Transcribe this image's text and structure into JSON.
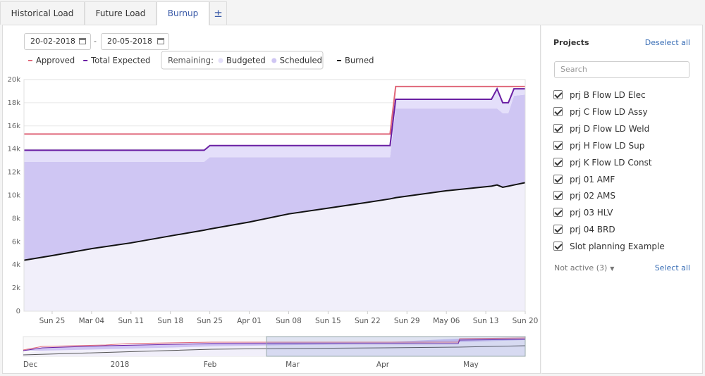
{
  "tabs": [
    "Historical Load",
    "Future Load",
    "Burnup",
    "±"
  ],
  "active_tab": 2,
  "date_from": "20-02-2018",
  "date_separator": "-",
  "date_to": "20-05-2018",
  "chart_data": {
    "type": "area",
    "legend_group_label": "Remaining:",
    "x": [
      "2018-02-20",
      "2018-02-25",
      "2018-03-04",
      "2018-03-11",
      "2018-03-18",
      "2018-03-24",
      "2018-03-25",
      "2018-04-01",
      "2018-04-08",
      "2018-04-15",
      "2018-04-22",
      "2018-04-26",
      "2018-04-27",
      "2018-05-06",
      "2018-05-14",
      "2018-05-15",
      "2018-05-16",
      "2018-05-17",
      "2018-05-18",
      "2018-05-20"
    ],
    "series": [
      {
        "name": "Approved",
        "kind": "line",
        "color": "#e0687a",
        "values": [
          15300,
          15300,
          15300,
          15300,
          15300,
          15300,
          15300,
          15300,
          15300,
          15300,
          15300,
          15300,
          19400,
          19400,
          19400,
          19400,
          19400,
          19400,
          19400,
          19400
        ]
      },
      {
        "name": "Total Expected",
        "kind": "line",
        "color": "#6a1fa3",
        "values": [
          13900,
          13900,
          13900,
          13900,
          13900,
          13900,
          14300,
          14300,
          14300,
          14300,
          14300,
          14300,
          18300,
          18300,
          18300,
          19200,
          18000,
          18000,
          19200,
          19200
        ]
      },
      {
        "name": "Budgeted",
        "kind": "stack",
        "group": "remaining",
        "color": "#e4dffa",
        "values": [
          1000,
          1000,
          1000,
          1000,
          1000,
          1000,
          1000,
          1000,
          1000,
          1000,
          1000,
          1000,
          800,
          800,
          800,
          1700,
          900,
          900,
          600,
          500
        ]
      },
      {
        "name": "Scheduled",
        "kind": "stack",
        "group": "remaining",
        "color": "#cfc6f3",
        "values": [
          8500,
          8100,
          7500,
          7000,
          6400,
          5900,
          6200,
          5600,
          4900,
          4400,
          3900,
          3600,
          7700,
          7100,
          6700,
          6600,
          6400,
          6300,
          7700,
          7600
        ]
      },
      {
        "name": "Burned",
        "kind": "base",
        "color": "#111111",
        "fill": "#f1effa",
        "values": [
          4400,
          4800,
          5400,
          5900,
          6500,
          7000,
          7100,
          7700,
          8400,
          8900,
          9400,
          9700,
          9800,
          10400,
          10800,
          10900,
          10700,
          10800,
          10900,
          11100
        ]
      }
    ],
    "xlim": [
      "2018-02-20",
      "2018-05-20"
    ],
    "xticks": [
      {
        "value": "2018-02-25",
        "label": "Sun 25"
      },
      {
        "value": "2018-03-04",
        "label": "Mar 04"
      },
      {
        "value": "2018-03-11",
        "label": "Sun 11"
      },
      {
        "value": "2018-03-18",
        "label": "Sun 18"
      },
      {
        "value": "2018-03-25",
        "label": "Sun 25"
      },
      {
        "value": "2018-04-01",
        "label": "Apr 01"
      },
      {
        "value": "2018-04-08",
        "label": "Sun 08"
      },
      {
        "value": "2018-04-15",
        "label": "Sun 15"
      },
      {
        "value": "2018-04-22",
        "label": "Sun 22"
      },
      {
        "value": "2018-04-29",
        "label": "Sun 29"
      },
      {
        "value": "2018-05-06",
        "label": "May 06"
      },
      {
        "value": "2018-05-13",
        "label": "Sun 13"
      },
      {
        "value": "2018-05-20",
        "label": "Sun 20"
      }
    ],
    "ylim": [
      0,
      20000
    ],
    "yticks": [
      0,
      {
        "value": 2000,
        "label": "2k"
      },
      {
        "value": 4000,
        "label": "4k"
      },
      {
        "value": 6000,
        "label": "6k"
      },
      {
        "value": 8000,
        "label": "8k"
      },
      {
        "value": 10000,
        "label": "10k"
      },
      {
        "value": 12000,
        "label": "12k"
      },
      {
        "value": 14000,
        "label": "14k"
      },
      {
        "value": 16000,
        "label": "16k"
      },
      {
        "value": 18000,
        "label": "18k"
      },
      {
        "value": 20000,
        "label": "20k"
      }
    ],
    "grid": true
  },
  "navigator_labels": [
    "Dec",
    "2018",
    "Feb",
    "Mar",
    "Apr",
    "May"
  ],
  "projects": {
    "title": "Projects",
    "deselect": "Deselect all",
    "search_placeholder": "Search",
    "items": [
      "prj B Flow LD Elec",
      "prj C Flow LD Assy",
      "prj D Flow LD Weld",
      "prj H Flow LD Sup",
      "prj K Flow LD Const",
      "prj 01 AMF",
      "prj 02 AMS",
      "prj 03 HLV",
      "prj 04 BRD",
      "Slot planning Example"
    ],
    "not_active": "Not active (3)",
    "select_all": "Select all"
  }
}
